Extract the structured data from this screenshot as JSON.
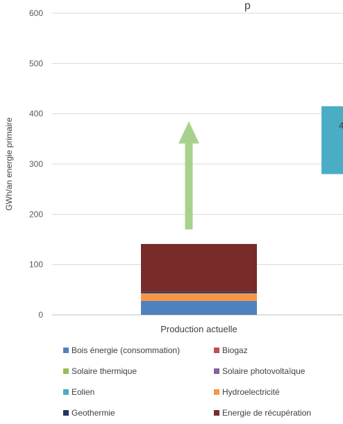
{
  "chart_data": {
    "type": "bar",
    "stacked": true,
    "title": "",
    "ylabel": "GWh/an energie primaire",
    "xlabel": "",
    "ylim": [
      0,
      600
    ],
    "yticks": [
      0,
      100,
      200,
      300,
      400,
      500,
      600
    ],
    "grid": true,
    "legend_position": "bottom",
    "categories": [
      "Production actuelle",
      ""
    ],
    "series": [
      {
        "name": "Bois énergie (consommation)",
        "color": "#4f81bd",
        "values": [
          28,
          null
        ]
      },
      {
        "name": "Biogaz",
        "color": "#c0504d",
        "values": [
          0,
          null
        ]
      },
      {
        "name": "Solaire thermique",
        "color": "#9bbb59",
        "values": [
          0,
          null
        ]
      },
      {
        "name": "Solaire photovoltaïque",
        "color": "#8064a2",
        "values": [
          0,
          null
        ]
      },
      {
        "name": "Eolien",
        "color": "#4bacc6",
        "values": [
          0,
          135
        ]
      },
      {
        "name": "Hydroelectricité",
        "color": "#f79646",
        "values": [
          15,
          null
        ]
      },
      {
        "name": "Geothermie",
        "color": "#1f3864",
        "values": [
          3,
          null
        ]
      },
      {
        "name": "Energie de récupération",
        "color": "#772c2a",
        "values": [
          95,
          null
        ]
      }
    ],
    "second_bar_base": 280,
    "arrow": {
      "from": 170,
      "to": 385,
      "color": "#a9d18e"
    },
    "clipped_label": "4",
    "clipped_title_fragment": "p"
  }
}
